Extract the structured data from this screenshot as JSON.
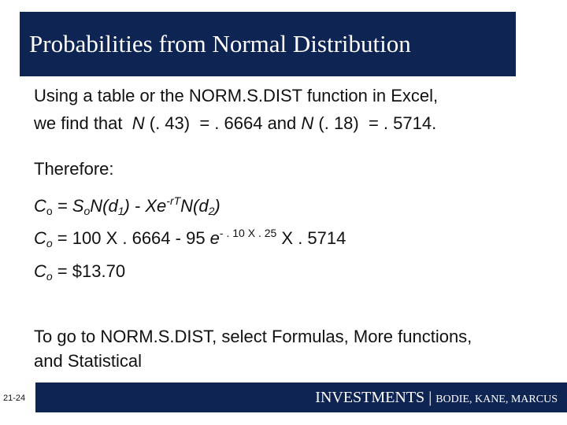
{
  "header": {
    "title": "Probabilities from Normal Distribution"
  },
  "body": {
    "intro": [
      "Using a table or the NORM.S.DIST function in Excel,"
    ],
    "intro_line2": [
      "we find that  ",
      "N",
      " (. 43)  = . 6664 and ",
      "N",
      " (. 18)  = . 5714."
    ],
    "therefore": "Therefore:",
    "formulas": [
      [
        "C",
        "o",
        " = S",
        "o",
        "N(d",
        "1",
        ") - Xe",
        "-rT",
        "N(d",
        "2",
        ")"
      ],
      [
        "C",
        "o",
        " = 100 X . 6664 - 95 ",
        "e",
        "- . 10 X . 25",
        " X . 5714"
      ],
      [
        "C",
        "o",
        " = $13.70"
      ]
    ],
    "note": [
      "To go to NORM.S.DIST, select Formulas, More functions,",
      "and Statistical"
    ]
  },
  "footer": {
    "page": "21-24",
    "brand": [
      "INVESTMENTS",
      " | ",
      "BODIE, KANE, MARCUS"
    ]
  }
}
